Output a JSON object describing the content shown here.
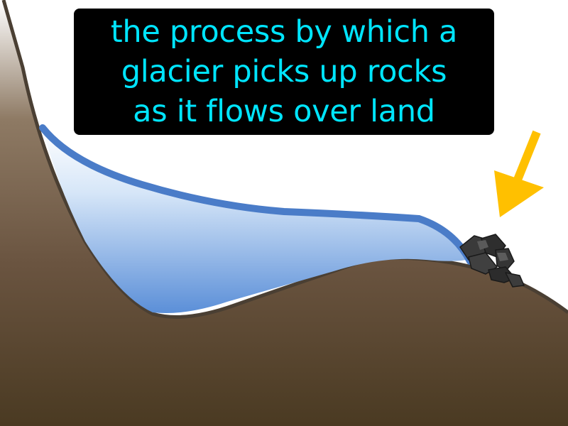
{
  "caption": {
    "lines": [
      "the process by which a",
      "glacier picks up rocks",
      "as it flows over land"
    ]
  },
  "colors": {
    "caption_text": "#00e5ff",
    "caption_bg": "#000000",
    "ground_top": "#7a624a",
    "ground_bottom": "#4a3a22",
    "ground_outline": "#4a3f33",
    "ice_top": "#ffffff",
    "ice_bottom": "#5b8fd8",
    "ice_surface": "#4a7cc8",
    "rock_fill": "#3a3a3a",
    "rock_edge": "#1a1a1a",
    "arrow": "#ffc000"
  },
  "icons": [
    "glacier-ice",
    "rock-pile-icon",
    "arrow-down-left-icon"
  ]
}
